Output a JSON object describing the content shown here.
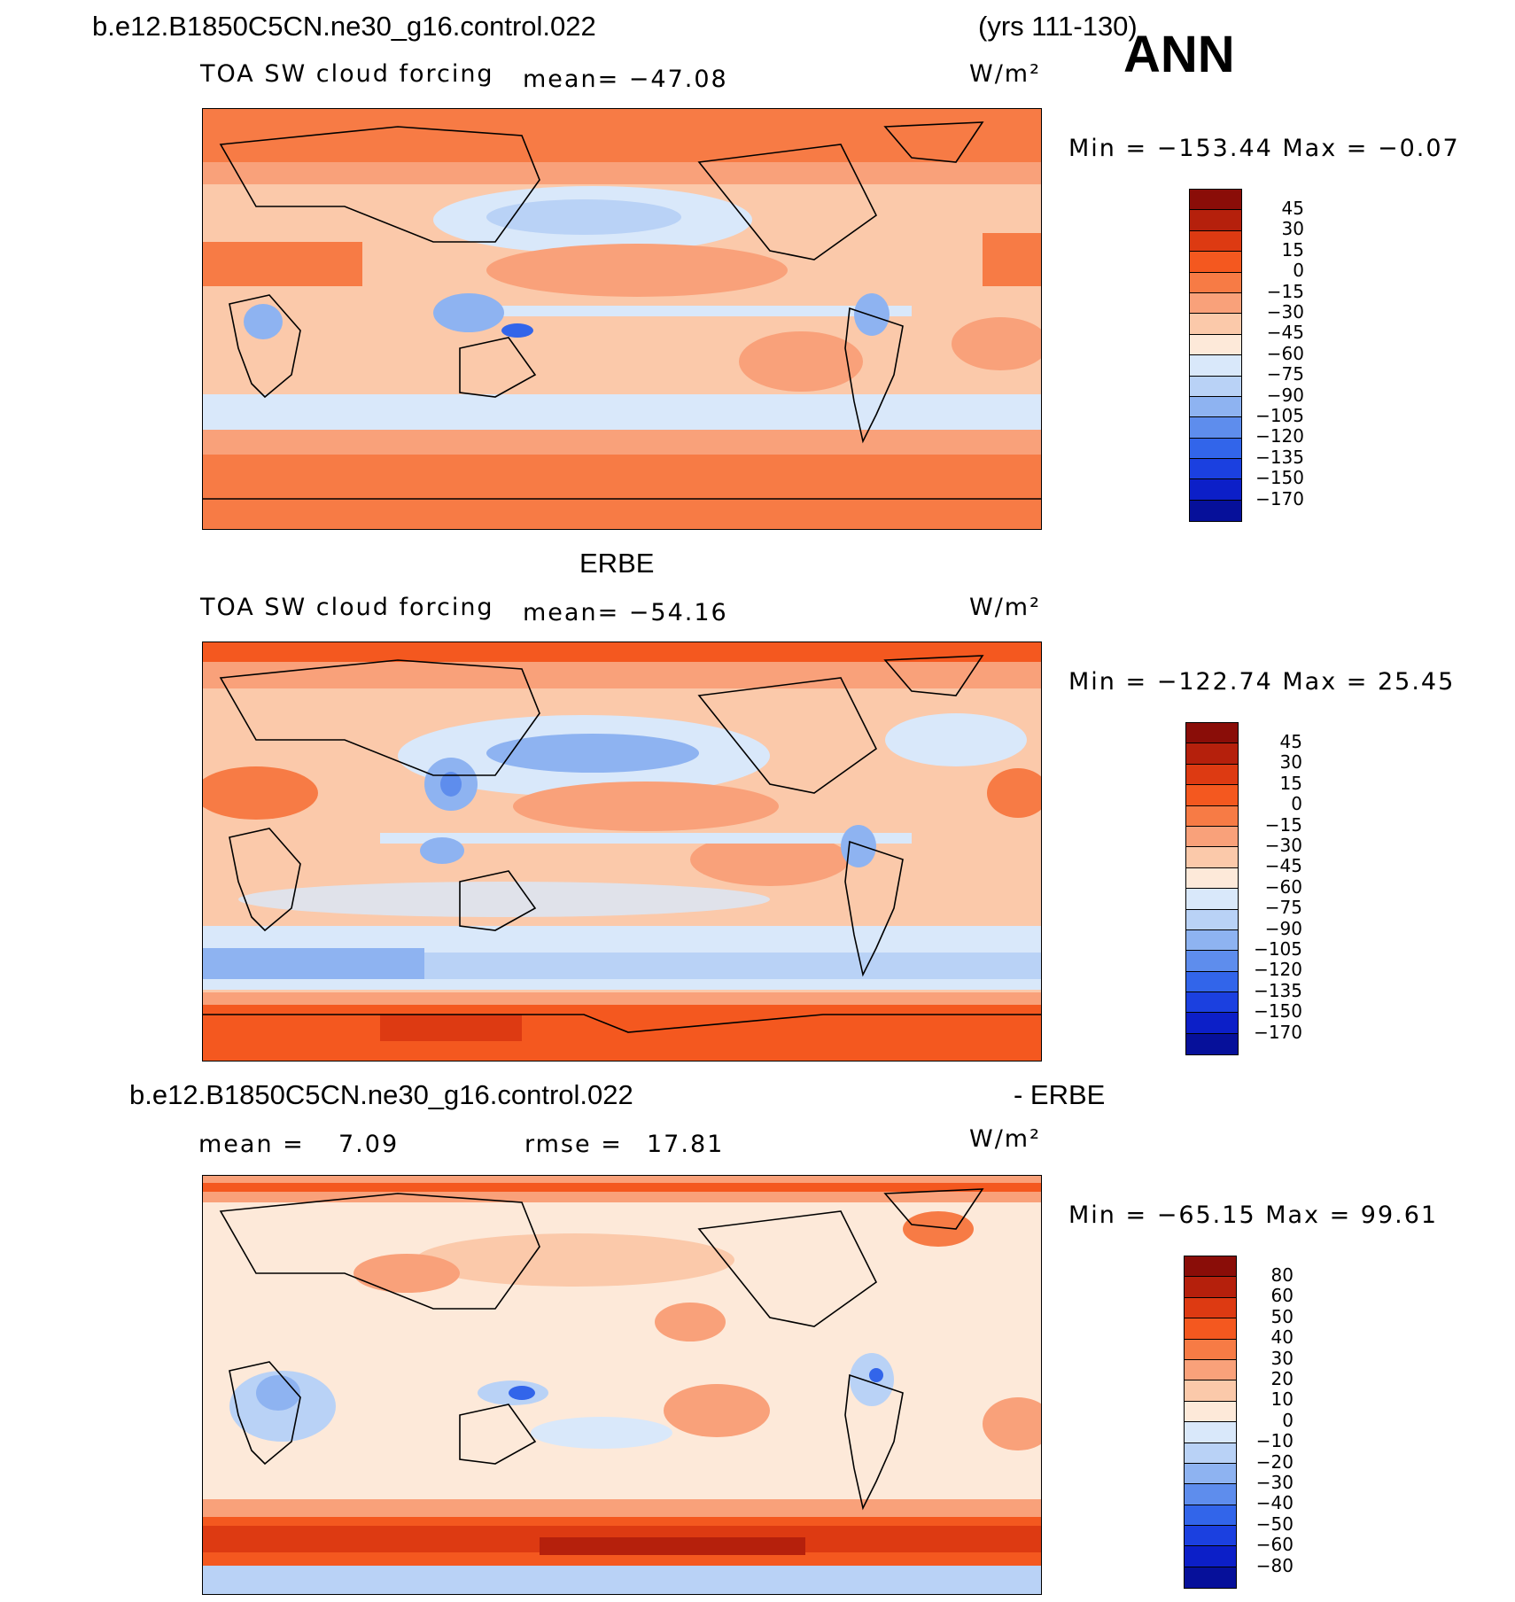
{
  "header": {
    "case_name": "b.e12.B1850C5CN.ne30_g16.control.022",
    "years": "(yrs 111-130)",
    "season": "ANN"
  },
  "panel1": {
    "variable": "TOA SW cloud forcing",
    "mean": "mean=  −47.08",
    "units": "W/m²",
    "minmax": "Min  =  −153.44  Max  =    −0.07",
    "colorbar_labels": [
      "45",
      "30",
      "15",
      "0",
      "−15",
      "−30",
      "−45",
      "−60",
      "−75",
      "−90",
      "−105",
      "−120",
      "−135",
      "−150",
      "−170"
    ],
    "colorbar_colors": [
      "#8a0d08",
      "#b5200c",
      "#dd3a12",
      "#f4581f",
      "#f77b45",
      "#f9a17a",
      "#fbc9aa",
      "#fde9d9",
      "#d9e8fa",
      "#b9d2f6",
      "#8eb3f1",
      "#5e8ded",
      "#3265ea",
      "#1b40e0",
      "#0c1fc8",
      "#06109a"
    ]
  },
  "panel2": {
    "title": "ERBE",
    "variable": "TOA SW cloud forcing",
    "mean": "mean=  −54.16",
    "units": "W/m²",
    "minmax": "Min  =  −122.74  Max  =    25.45",
    "colorbar_labels": [
      "45",
      "30",
      "15",
      "0",
      "−15",
      "−30",
      "−45",
      "−60",
      "−75",
      "−90",
      "−105",
      "−120",
      "−135",
      "−150",
      "−170"
    ],
    "colorbar_colors": [
      "#8a0d08",
      "#b5200c",
      "#dd3a12",
      "#f4581f",
      "#f77b45",
      "#f9a17a",
      "#fbc9aa",
      "#fde9d9",
      "#d9e8fa",
      "#b9d2f6",
      "#8eb3f1",
      "#5e8ded",
      "#3265ea",
      "#1b40e0",
      "#0c1fc8",
      "#06109a"
    ]
  },
  "panel3": {
    "title_left": "b.e12.B1850C5CN.ne30_g16.control.022",
    "title_right": "- ERBE",
    "mean_label": "mean  =",
    "mean_value": "7.09",
    "rmse_label": "rmse  =",
    "rmse_value": "17.81",
    "units": "W/m²",
    "minmax": "Min  =  −65.15  Max  =    99.61",
    "colorbar_labels": [
      "80",
      "60",
      "50",
      "40",
      "30",
      "20",
      "10",
      "0",
      "−10",
      "−20",
      "−30",
      "−40",
      "−50",
      "−60",
      "−80"
    ],
    "colorbar_colors": [
      "#8a0d08",
      "#b5200c",
      "#dd3a12",
      "#f4581f",
      "#f77b45",
      "#f9a17a",
      "#fbc9aa",
      "#fde9d9",
      "#d9e8fa",
      "#b9d2f6",
      "#8eb3f1",
      "#5e8ded",
      "#3265ea",
      "#1b40e0",
      "#0c1fc8",
      "#06109a"
    ]
  }
}
